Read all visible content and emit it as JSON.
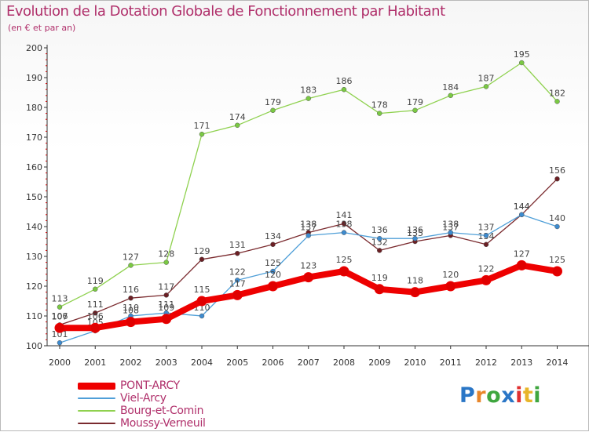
{
  "chart_data": {
    "type": "line",
    "title": "Evolution de la Dotation Globale de Fonctionnement par Habitant",
    "subtitle": "(en € et par an)",
    "xlabel": "",
    "ylabel": "",
    "x": [
      "2000",
      "2001",
      "2002",
      "2003",
      "2004",
      "2005",
      "2006",
      "2007",
      "2008",
      "2009",
      "2010",
      "2011",
      "2012",
      "2013",
      "2014"
    ],
    "ylim": [
      100,
      200
    ],
    "yticks": [
      100,
      110,
      120,
      130,
      140,
      150,
      160,
      170,
      180,
      190,
      200
    ],
    "grid": false,
    "legend_position": "bottom-left",
    "series": [
      {
        "name": "Bourg-et-Comin",
        "color": "#8fd14f",
        "marker_color": "#7ac943",
        "values": [
          113,
          119,
          127,
          128,
          171,
          174,
          179,
          183,
          186,
          178,
          179,
          184,
          187,
          195,
          182
        ]
      },
      {
        "name": "Moussy-Verneuil",
        "color": "#7a2a2e",
        "marker_color": "#6b1f24",
        "values": [
          107,
          111,
          116,
          117,
          129,
          131,
          134,
          138,
          141,
          132,
          135,
          137,
          134,
          144,
          156
        ]
      },
      {
        "name": "Viel-Arcy",
        "color": "#4f9fd8",
        "marker_color": "#3d8bcf",
        "values": [
          101,
          105,
          110,
          111,
          110,
          122,
          125,
          137,
          138,
          136,
          136,
          138,
          137,
          144,
          140
        ]
      },
      {
        "name": "PONT-ARCY",
        "color": "#ee0000",
        "marker_color": "#e00000",
        "values": [
          106,
          106,
          108,
          109,
          115,
          117,
          120,
          123,
          125,
          119,
          118,
          120,
          122,
          127,
          125
        ]
      }
    ],
    "legend_order": [
      "PONT-ARCY",
      "Viel-Arcy",
      "Bourg-et-Comin",
      "Moussy-Verneuil"
    ]
  },
  "logo": {
    "letters": [
      "P",
      "r",
      "o",
      "x",
      "i",
      "t",
      "i"
    ],
    "colors": [
      "#2a76c6",
      "#e8862a",
      "#3fa63f",
      "#2a76c6",
      "#e03030",
      "#e8b52a",
      "#3fa63f"
    ]
  }
}
